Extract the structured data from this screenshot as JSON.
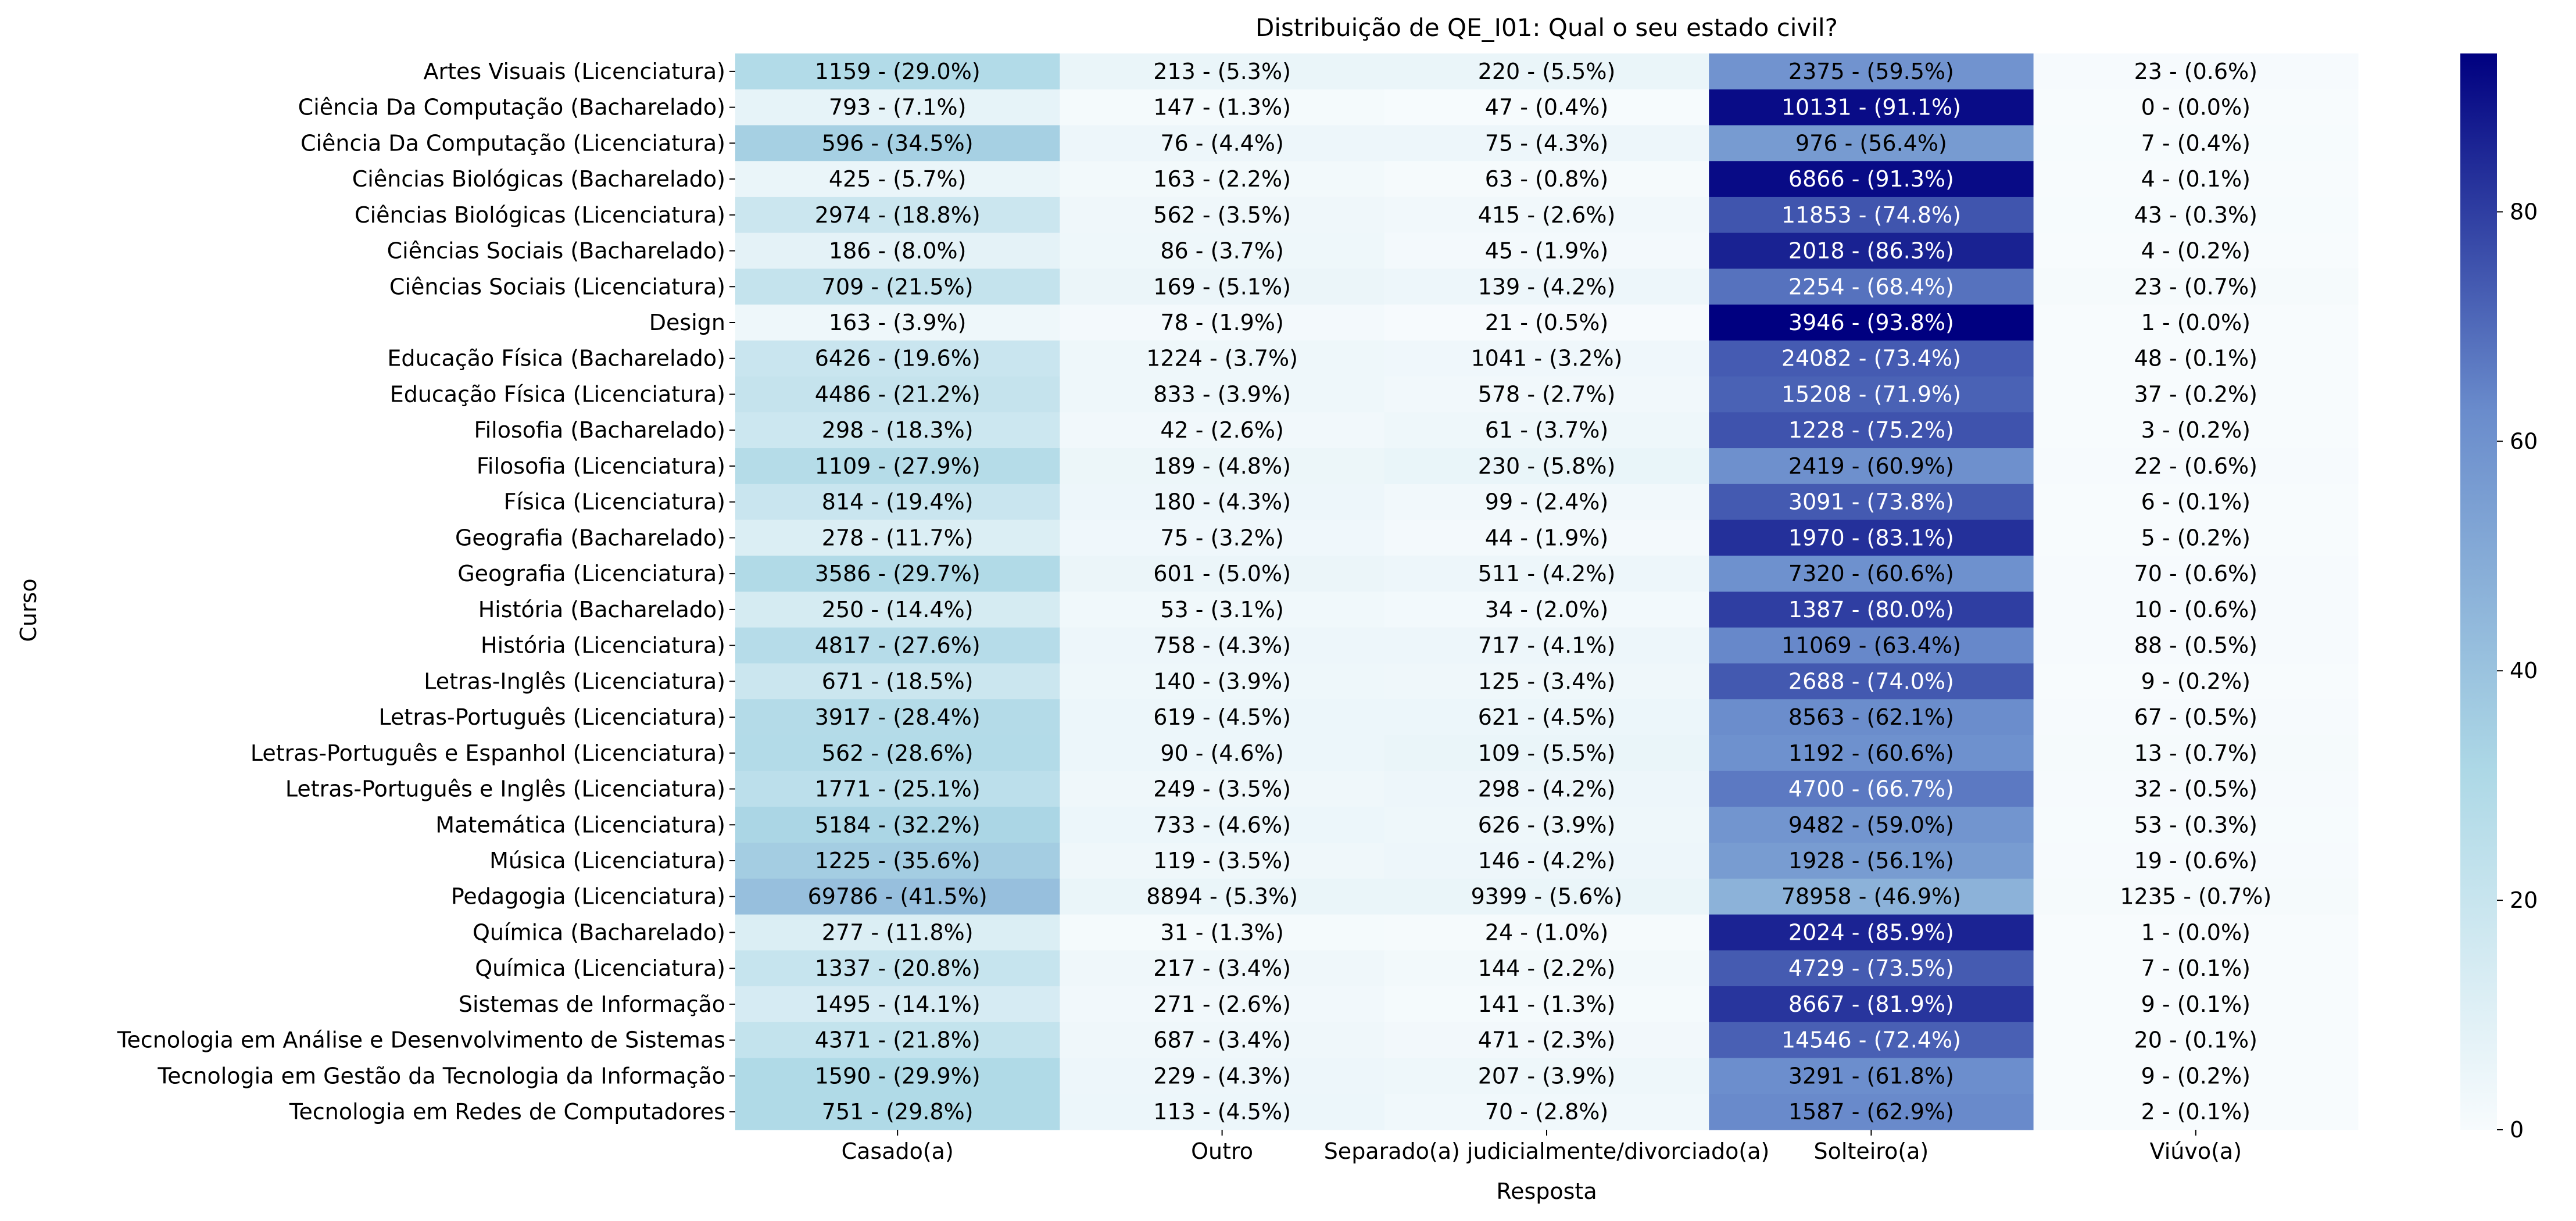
{
  "chart_data": {
    "type": "heatmap",
    "title": "Distribuição de QE_I01: Qual o seu estado civil?",
    "xlabel": "Resposta",
    "ylabel": "Curso",
    "columns": [
      "Casado(a)",
      "Outro",
      "Separado(a) judicialmente/divorciado(a)",
      "Solteiro(a)",
      "Viúvo(a)"
    ],
    "rows": [
      "Artes Visuais (Licenciatura)",
      "Ciência Da Computação (Bacharelado)",
      "Ciência Da Computação (Licenciatura)",
      "Ciências Biológicas (Bacharelado)",
      "Ciências Biológicas (Licenciatura)",
      "Ciências Sociais (Bacharelado)",
      "Ciências Sociais (Licenciatura)",
      "Design",
      "Educação Física (Bacharelado)",
      "Educação Física (Licenciatura)",
      "Filosofia (Bacharelado)",
      "Filosofia (Licenciatura)",
      "Física (Licenciatura)",
      "Geografia (Bacharelado)",
      "Geografia (Licenciatura)",
      "História (Bacharelado)",
      "História (Licenciatura)",
      "Letras-Inglês (Licenciatura)",
      "Letras-Português (Licenciatura)",
      "Letras-Português e Espanhol (Licenciatura)",
      "Letras-Português e Inglês (Licenciatura)",
      "Matemática (Licenciatura)",
      "Música (Licenciatura)",
      "Pedagogia (Licenciatura)",
      "Química (Bacharelado)",
      "Química (Licenciatura)",
      "Sistemas de Informação",
      "Tecnologia em Análise e Desenvolvimento de Sistemas",
      "Tecnologia em Gestão da Tecnologia da Informação",
      "Tecnologia em Redes de Computadores"
    ],
    "counts": [
      [
        1159,
        213,
        220,
        2375,
        23
      ],
      [
        793,
        147,
        47,
        10131,
        0
      ],
      [
        596,
        76,
        75,
        976,
        7
      ],
      [
        425,
        163,
        63,
        6866,
        4
      ],
      [
        2974,
        562,
        415,
        11853,
        43
      ],
      [
        186,
        86,
        45,
        2018,
        4
      ],
      [
        709,
        169,
        139,
        2254,
        23
      ],
      [
        163,
        78,
        21,
        3946,
        1
      ],
      [
        6426,
        1224,
        1041,
        24082,
        48
      ],
      [
        4486,
        833,
        578,
        15208,
        37
      ],
      [
        298,
        42,
        61,
        1228,
        3
      ],
      [
        1109,
        189,
        230,
        2419,
        22
      ],
      [
        814,
        180,
        99,
        3091,
        6
      ],
      [
        278,
        75,
        44,
        1970,
        5
      ],
      [
        3586,
        601,
        511,
        7320,
        70
      ],
      [
        250,
        53,
        34,
        1387,
        10
      ],
      [
        4817,
        758,
        717,
        11069,
        88
      ],
      [
        671,
        140,
        125,
        2688,
        9
      ],
      [
        3917,
        619,
        621,
        8563,
        67
      ],
      [
        562,
        90,
        109,
        1192,
        13
      ],
      [
        1771,
        249,
        298,
        4700,
        32
      ],
      [
        5184,
        733,
        626,
        9482,
        53
      ],
      [
        1225,
        119,
        146,
        1928,
        19
      ],
      [
        69786,
        8894,
        9399,
        78958,
        1235
      ],
      [
        277,
        31,
        24,
        2024,
        1
      ],
      [
        1337,
        217,
        144,
        4729,
        7
      ],
      [
        1495,
        271,
        141,
        8667,
        9
      ],
      [
        4371,
        687,
        471,
        14546,
        20
      ],
      [
        1590,
        229,
        207,
        3291,
        9
      ],
      [
        751,
        113,
        70,
        1587,
        2
      ]
    ],
    "percentages": [
      [
        29.0,
        5.3,
        5.5,
        59.5,
        0.6
      ],
      [
        7.1,
        1.3,
        0.4,
        91.1,
        0.0
      ],
      [
        34.5,
        4.4,
        4.3,
        56.4,
        0.4
      ],
      [
        5.7,
        2.2,
        0.8,
        91.3,
        0.1
      ],
      [
        18.8,
        3.5,
        2.6,
        74.8,
        0.3
      ],
      [
        8.0,
        3.7,
        1.9,
        86.3,
        0.2
      ],
      [
        21.5,
        5.1,
        4.2,
        68.4,
        0.7
      ],
      [
        3.9,
        1.9,
        0.5,
        93.8,
        0.0
      ],
      [
        19.6,
        3.7,
        3.2,
        73.4,
        0.1
      ],
      [
        21.2,
        3.9,
        2.7,
        71.9,
        0.2
      ],
      [
        18.3,
        2.6,
        3.7,
        75.2,
        0.2
      ],
      [
        27.9,
        4.8,
        5.8,
        60.9,
        0.6
      ],
      [
        19.4,
        4.3,
        2.4,
        73.8,
        0.1
      ],
      [
        11.7,
        3.2,
        1.9,
        83.1,
        0.2
      ],
      [
        29.7,
        5.0,
        4.2,
        60.6,
        0.6
      ],
      [
        14.4,
        3.1,
        2.0,
        80.0,
        0.6
      ],
      [
        27.6,
        4.3,
        4.1,
        63.4,
        0.5
      ],
      [
        18.5,
        3.9,
        3.4,
        74.0,
        0.2
      ],
      [
        28.4,
        4.5,
        4.5,
        62.1,
        0.5
      ],
      [
        28.6,
        4.6,
        5.5,
        60.6,
        0.7
      ],
      [
        25.1,
        3.5,
        4.2,
        66.7,
        0.5
      ],
      [
        32.2,
        4.6,
        3.9,
        59.0,
        0.3
      ],
      [
        35.6,
        3.5,
        4.2,
        56.1,
        0.6
      ],
      [
        41.5,
        5.3,
        5.6,
        46.9,
        0.7
      ],
      [
        11.8,
        1.3,
        1.0,
        85.9,
        0.0
      ],
      [
        20.8,
        3.4,
        2.2,
        73.5,
        0.1
      ],
      [
        14.1,
        2.6,
        1.3,
        81.9,
        0.1
      ],
      [
        21.8,
        3.4,
        2.3,
        72.4,
        0.1
      ],
      [
        29.9,
        4.3,
        3.9,
        61.8,
        0.2
      ],
      [
        29.8,
        4.5,
        2.8,
        62.9,
        0.1
      ]
    ],
    "colorbar": {
      "ticks": [
        0,
        20,
        40,
        60,
        80
      ],
      "range": [
        0,
        93.8
      ],
      "colors": [
        "#f7fbfd",
        "#add8e6",
        "#6a8ccc",
        "#000080"
      ]
    },
    "text_colors": {
      "light": "#ffffff",
      "dark": "#000000"
    }
  }
}
